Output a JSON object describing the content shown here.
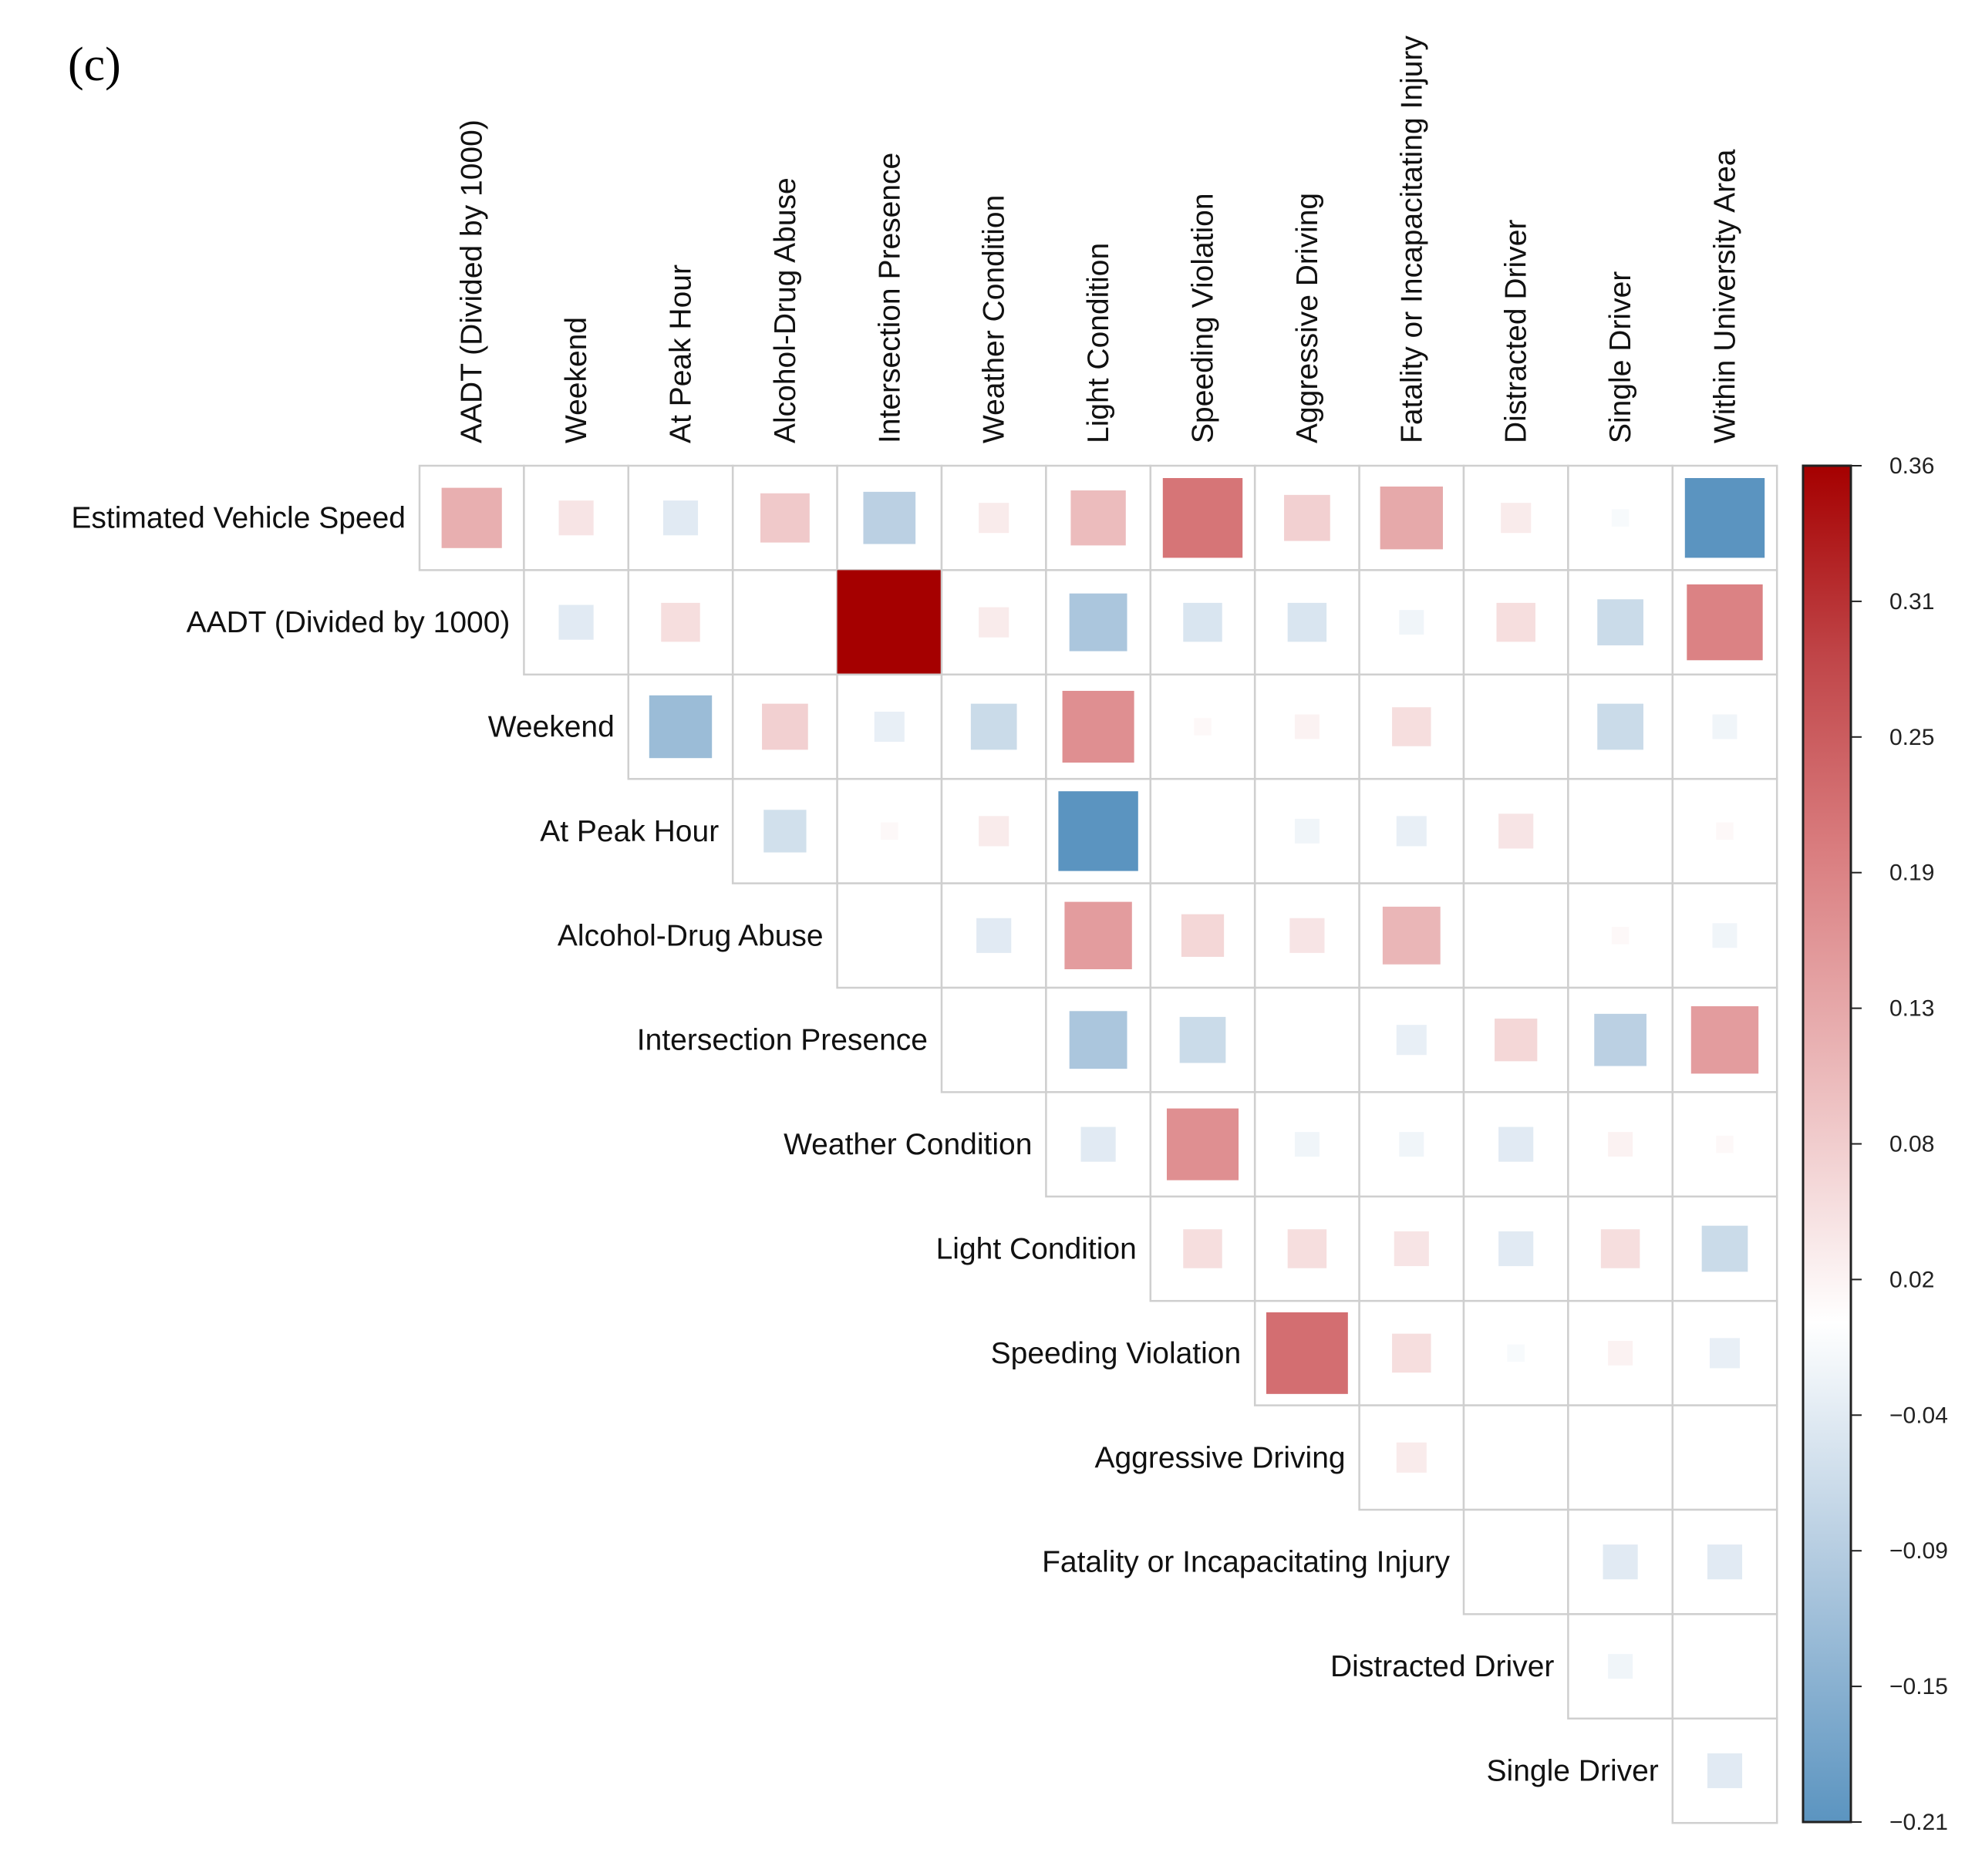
{
  "panel_label": "(c)",
  "chart_data": {
    "type": "heatmap",
    "method": "square",
    "layout": "upper-triangle",
    "columns": [
      "AADT (Divided by 1000)",
      "Weekend",
      "At Peak Hour",
      "Alcohol-Drug Abuse",
      "Intersection Presence",
      "Weather Condition",
      "Light Condition",
      "Speeding Violation",
      "Aggressive Driving",
      "Fatality or Incapacitating Injury",
      "Distracted Driver",
      "Single Driver",
      "Within University Area"
    ],
    "rows": [
      "Estimated Vehicle Speed",
      "AADT (Divided by 1000)",
      "Weekend",
      "At Peak Hour",
      "Alcohol-Drug Abuse",
      "Intersection Presence",
      "Weather Condition",
      "Light Condition",
      "Speeding Violation",
      "Aggressive Driving",
      "Fatality or Incapacitating Injury",
      "Distracted Driver",
      "Single Driver"
    ],
    "values": [
      [
        0.12,
        0.04,
        -0.04,
        0.08,
        -0.09,
        0.03,
        0.1,
        0.21,
        0.07,
        0.13,
        0.03,
        -0.01,
        -0.21
      ],
      [
        null,
        -0.04,
        0.05,
        0.0,
        0.36,
        0.03,
        -0.11,
        -0.05,
        -0.05,
        -0.02,
        0.05,
        -0.07,
        0.19
      ],
      [
        null,
        null,
        -0.13,
        0.07,
        -0.03,
        -0.07,
        0.17,
        0.01,
        0.02,
        0.05,
        0.0,
        -0.07,
        -0.02
      ],
      [
        null,
        null,
        null,
        -0.06,
        0.01,
        0.03,
        -0.21,
        0.0,
        -0.02,
        -0.03,
        0.04,
        0.0,
        0.01
      ],
      [
        null,
        null,
        null,
        null,
        0.0,
        -0.04,
        0.15,
        0.06,
        0.04,
        0.11,
        0.0,
        0.01,
        -0.02
      ],
      [
        null,
        null,
        null,
        null,
        null,
        0.0,
        -0.11,
        -0.07,
        0.0,
        -0.03,
        0.06,
        -0.09,
        0.15
      ],
      [
        null,
        null,
        null,
        null,
        null,
        null,
        -0.04,
        0.17,
        -0.02,
        -0.02,
        -0.04,
        0.02,
        0.01
      ],
      [
        null,
        null,
        null,
        null,
        null,
        null,
        null,
        0.05,
        0.05,
        0.04,
        -0.04,
        0.05,
        -0.07
      ],
      [
        null,
        null,
        null,
        null,
        null,
        null,
        null,
        null,
        0.22,
        0.05,
        -0.01,
        0.02,
        -0.03
      ],
      [
        null,
        null,
        null,
        null,
        null,
        null,
        null,
        null,
        null,
        0.03,
        0.0,
        0.0,
        0.0
      ],
      [
        null,
        null,
        null,
        null,
        null,
        null,
        null,
        null,
        null,
        null,
        0.0,
        -0.04,
        -0.04
      ],
      [
        null,
        null,
        null,
        null,
        null,
        null,
        null,
        null,
        null,
        null,
        null,
        -0.02,
        0.0
      ],
      [
        null,
        null,
        null,
        null,
        null,
        null,
        null,
        null,
        null,
        null,
        null,
        null,
        -0.04
      ]
    ],
    "color_scale": {
      "range": [
        -0.21,
        0.36
      ],
      "ticks": [
        "0.36",
        "0.31",
        "0.25",
        "0.19",
        "0.13",
        "0.08",
        "0.02",
        "−0.04",
        "−0.09",
        "−0.15",
        "−0.21"
      ],
      "stops": [
        {
          "v": -0.21,
          "c": "#5b94c0"
        },
        {
          "v": -0.1,
          "c": "#b3cbe0"
        },
        {
          "v": 0.0,
          "c": "#ffffff"
        },
        {
          "v": 0.1,
          "c": "#ecbcbd"
        },
        {
          "v": 0.2,
          "c": "#d97c7e"
        },
        {
          "v": 0.28,
          "c": "#c04548"
        },
        {
          "v": 0.36,
          "c": "#a50000"
        }
      ]
    },
    "legend": "right"
  }
}
